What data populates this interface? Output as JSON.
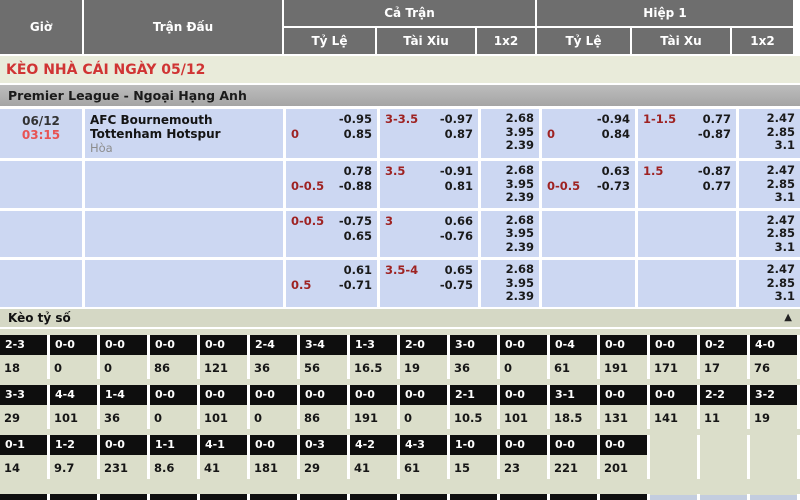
{
  "table_header": {
    "time": "Giờ",
    "match": "Trận Đấu",
    "full_time": "Cả Trận",
    "first_half": "Hiệp 1",
    "ft_handicap": "Tỷ Lệ",
    "ft_over_under": "Tài Xiu",
    "ft_1x2": "1x2",
    "h1_handicap": "Tỷ Lệ",
    "h1_over_under": "Tài Xu",
    "h1_1x2": "1x2"
  },
  "page_title": "KÈO NHÀ CÁI NGÀY 05/12",
  "league_header": "Premier League - Ngoại Hạng Anh",
  "match_info": {
    "date": "06/12",
    "time": "03:15",
    "home_team": "AFC Bournemouth",
    "away_team": "Tottenham Hotspur",
    "draw_label": "Hòa"
  },
  "odds_rows": [
    {
      "ft_handicap": {
        "label": "0",
        "label_line": 2,
        "line1": "-0.95",
        "line2": "0.85"
      },
      "ft_over_under": {
        "label": "3-3.5",
        "label_line": 1,
        "line1": "-0.97",
        "line2": "0.87"
      },
      "ft_1x2": [
        "2.68",
        "3.95",
        "2.39"
      ],
      "h1_handicap": {
        "label": "0",
        "label_line": 2,
        "line1": "-0.94",
        "line2": "0.84"
      },
      "h1_over_under": {
        "label": "1-1.5",
        "label_line": 1,
        "line1": "0.77",
        "line2": "-0.87"
      },
      "h1_1x2": [
        "2.47",
        "2.85",
        "3.1"
      ]
    },
    {
      "ft_handicap": {
        "label": "0-0.5",
        "label_line": 2,
        "line1": "0.78",
        "line2": "-0.88"
      },
      "ft_over_under": {
        "label": "3.5",
        "label_line": 1,
        "line1": "-0.91",
        "line2": "0.81"
      },
      "ft_1x2": [
        "2.68",
        "3.95",
        "2.39"
      ],
      "h1_handicap": {
        "label": "0-0.5",
        "label_line": 2,
        "line1": "0.63",
        "line2": "-0.73"
      },
      "h1_over_under": {
        "label": "1.5",
        "label_line": 1,
        "line1": "-0.87",
        "line2": "0.77"
      },
      "h1_1x2": [
        "2.47",
        "2.85",
        "3.1"
      ]
    },
    {
      "ft_handicap": {
        "label": "0-0.5",
        "label_line": 1,
        "line1": "-0.75",
        "line2": "0.65"
      },
      "ft_over_under": {
        "label": "3",
        "label_line": 1,
        "line1": "0.66",
        "line2": "-0.76"
      },
      "ft_1x2": [
        "2.68",
        "3.95",
        "2.39"
      ],
      "h1_handicap": null,
      "h1_over_under": null,
      "h1_1x2": [
        "2.47",
        "2.85",
        "3.1"
      ]
    },
    {
      "ft_handicap": {
        "label": "0.5",
        "label_line": 2,
        "line1": "0.61",
        "line2": "-0.71"
      },
      "ft_over_under": {
        "label": "3.5-4",
        "label_line": 1,
        "line1": "0.65",
        "line2": "-0.75"
      },
      "ft_1x2": [
        "2.68",
        "3.95",
        "2.39"
      ],
      "h1_handicap": null,
      "h1_over_under": null,
      "h1_1x2": [
        "2.47",
        "2.85",
        "3.1"
      ]
    }
  ],
  "score_section": {
    "title": "Kèo tỷ số",
    "collapse_icon": "▲",
    "rows": [
      {
        "scores": [
          "2-3",
          "0-0",
          "0-0",
          "0-0",
          "0-0",
          "2-4",
          "3-4",
          "1-3",
          "2-0",
          "3-0",
          "0-0",
          "0-4",
          "0-0",
          "0-0",
          "0-2",
          "4-0"
        ],
        "odds": [
          "18",
          "0",
          "0",
          "86",
          "121",
          "36",
          "56",
          "16.5",
          "19",
          "36",
          "0",
          "61",
          "191",
          "171",
          "17",
          "76"
        ]
      },
      {
        "scores": [
          "3-3",
          "4-4",
          "1-4",
          "0-0",
          "0-0",
          "0-0",
          "0-0",
          "0-0",
          "0-0",
          "2-1",
          "0-0",
          "3-1",
          "0-0",
          "0-0",
          "2-2",
          "3-2"
        ],
        "odds": [
          "29",
          "101",
          "36",
          "0",
          "101",
          "0",
          "86",
          "191",
          "0",
          "10.5",
          "101",
          "18.5",
          "131",
          "141",
          "11",
          "19"
        ]
      },
      {
        "scores": [
          "0-1",
          "1-2",
          "0-0",
          "1-1",
          "4-1",
          "0-0",
          "0-3",
          "4-2",
          "4-3",
          "1-0",
          "0-0",
          "0-0",
          "0-0"
        ],
        "odds": [
          "14",
          "9.7",
          "231",
          "8.6",
          "41",
          "181",
          "29",
          "41",
          "61",
          "15",
          "23",
          "221",
          "201"
        ]
      }
    ]
  },
  "colors": {
    "header_gray": "#6e6e6e",
    "title_red": "#d03434",
    "label_red": "#9e2222",
    "time_red": "#e85353",
    "cell_blue": "#ccd7f2",
    "score_bg": "#dbdeca",
    "score_head_black": "#0e0e0e"
  }
}
